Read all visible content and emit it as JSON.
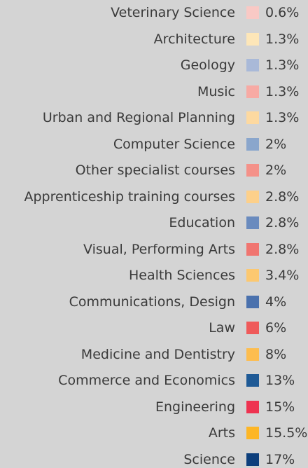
{
  "items": [
    {
      "label": "Veterinary Science",
      "value": "0.6%",
      "color": "#f9c9c5"
    },
    {
      "label": "Architecture",
      "value": "1.3%",
      "color": "#fde6b8"
    },
    {
      "label": "Geology",
      "value": "1.3%",
      "color": "#a9b9d8"
    },
    {
      "label": "Music",
      "value": "1.3%",
      "color": "#f7aaa4"
    },
    {
      "label": "Urban and Regional Planning",
      "value": "1.3%",
      "color": "#fdd9a0"
    },
    {
      "label": "Computer Science",
      "value": "2%",
      "color": "#8aa6cc"
    },
    {
      "label": "Other specialist courses",
      "value": "2%",
      "color": "#f49189"
    },
    {
      "label": "Apprenticeship training courses",
      "value": "2.8%",
      "color": "#fdd08a"
    },
    {
      "label": "Education",
      "value": "2.8%",
      "color": "#6a8bbe"
    },
    {
      "label": "Visual, Performing Arts",
      "value": "2.8%",
      "color": "#f07570"
    },
    {
      "label": "Health Sciences",
      "value": "3.4%",
      "color": "#fcc870"
    },
    {
      "label": "Communications, Design",
      "value": "4%",
      "color": "#4a71ad"
    },
    {
      "label": "Law",
      "value": "6%",
      "color": "#ef5a5a"
    },
    {
      "label": "Medicine and Dentistry",
      "value": "8%",
      "color": "#fdbd4f"
    },
    {
      "label": "Commerce and Economics",
      "value": "13%",
      "color": "#1f5a96"
    },
    {
      "label": "Engineering",
      "value": "15%",
      "color": "#ee3351"
    },
    {
      "label": "Arts",
      "value": "15.5%",
      "color": "#fdb626"
    },
    {
      "label": "Science",
      "value": "17%",
      "color": "#0d3f7c"
    }
  ]
}
